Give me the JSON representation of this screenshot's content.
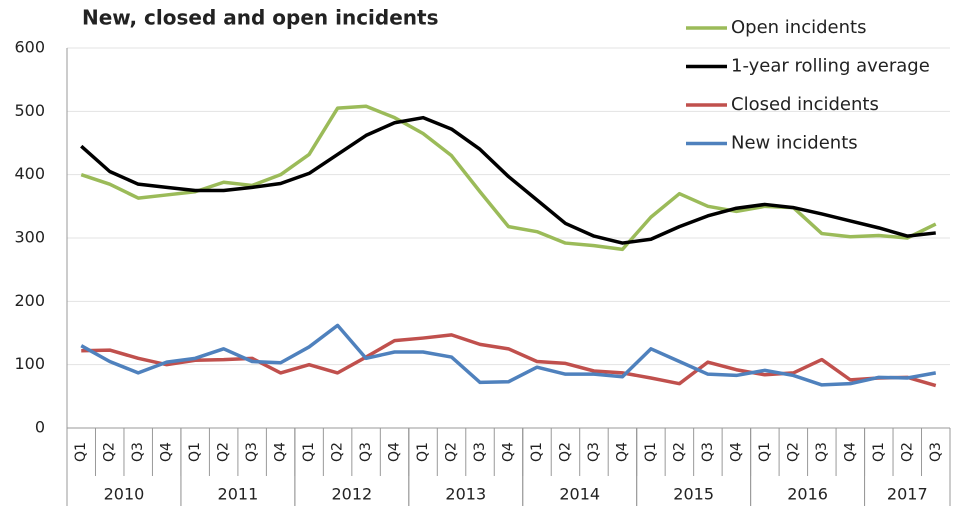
{
  "chart_data": {
    "type": "line",
    "title": "New, closed and open incidents",
    "categories": [
      "Q1",
      "Q2",
      "Q3",
      "Q4",
      "Q1",
      "Q2",
      "Q3",
      "Q4",
      "Q1",
      "Q2",
      "Q3",
      "Q4",
      "Q1",
      "Q2",
      "Q3",
      "Q4",
      "Q1",
      "Q2",
      "Q3",
      "Q4",
      "Q1",
      "Q2",
      "Q3",
      "Q4",
      "Q1",
      "Q2",
      "Q3",
      "Q4",
      "Q1",
      "Q2",
      "Q3"
    ],
    "groups": [
      {
        "label": "2010",
        "size": 4
      },
      {
        "label": "2011",
        "size": 4
      },
      {
        "label": "2012",
        "size": 4
      },
      {
        "label": "2013",
        "size": 4
      },
      {
        "label": "2014",
        "size": 4
      },
      {
        "label": "2015",
        "size": 4
      },
      {
        "label": "2016",
        "size": 4
      },
      {
        "label": "2017",
        "size": 3
      }
    ],
    "series": [
      {
        "name": "Open incidents",
        "color": "#9bbb59",
        "values": [
          400,
          385,
          363,
          368,
          373,
          388,
          383,
          400,
          432,
          505,
          508,
          490,
          465,
          430,
          373,
          318,
          310,
          292,
          288,
          282,
          333,
          370,
          350,
          342,
          350,
          348,
          307,
          302,
          304,
          300,
          322
        ]
      },
      {
        "name": "1-year rolling average",
        "color": "#000000",
        "values": [
          445,
          405,
          385,
          380,
          375,
          375,
          380,
          386,
          402,
          432,
          462,
          482,
          490,
          472,
          440,
          397,
          360,
          323,
          303,
          292,
          298,
          318,
          335,
          347,
          353,
          348,
          338,
          327,
          316,
          303,
          308
        ]
      },
      {
        "name": "Closed incidents",
        "color": "#c0504d",
        "values": [
          122,
          123,
          110,
          100,
          107,
          108,
          110,
          87,
          100,
          87,
          112,
          138,
          142,
          147,
          132,
          125,
          105,
          102,
          90,
          87,
          79,
          70,
          104,
          92,
          84,
          87,
          108,
          76,
          79,
          80,
          67
        ]
      },
      {
        "name": "New incidents",
        "color": "#4f81bd",
        "values": [
          130,
          105,
          87,
          104,
          110,
          125,
          105,
          103,
          128,
          162,
          110,
          120,
          120,
          112,
          72,
          73,
          96,
          85,
          85,
          81,
          125,
          105,
          85,
          83,
          91,
          83,
          68,
          70,
          80,
          79,
          87
        ]
      }
    ],
    "ylim": [
      0,
      600
    ],
    "yticks": [
      0,
      100,
      200,
      300,
      400,
      500,
      600
    ],
    "grid": true,
    "legend": "top right"
  }
}
